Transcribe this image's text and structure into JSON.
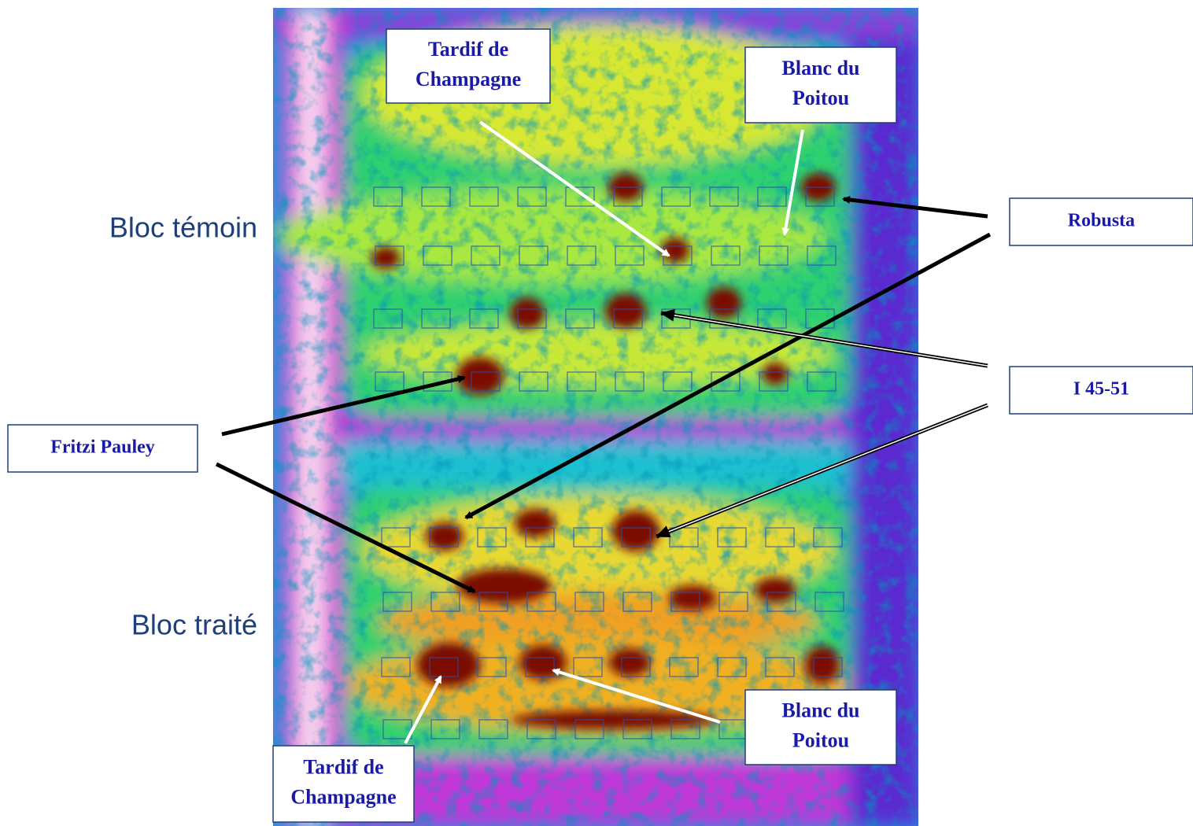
{
  "blocks": [
    "Bloc témoin",
    "Bloc traité"
  ],
  "callouts": [
    {
      "lines": [
        "Tardif de",
        "Champagne"
      ]
    },
    {
      "lines": [
        "Blanc du",
        "Poitou"
      ]
    },
    {
      "lines": [
        "Robusta"
      ]
    },
    {
      "lines": [
        "I 45-51"
      ]
    },
    {
      "lines": [
        "Fritzi Pauley"
      ]
    },
    {
      "lines": [
        "Blanc du",
        "Poitou"
      ]
    },
    {
      "lines": [
        "Tardif de",
        "Champagne"
      ]
    }
  ]
}
